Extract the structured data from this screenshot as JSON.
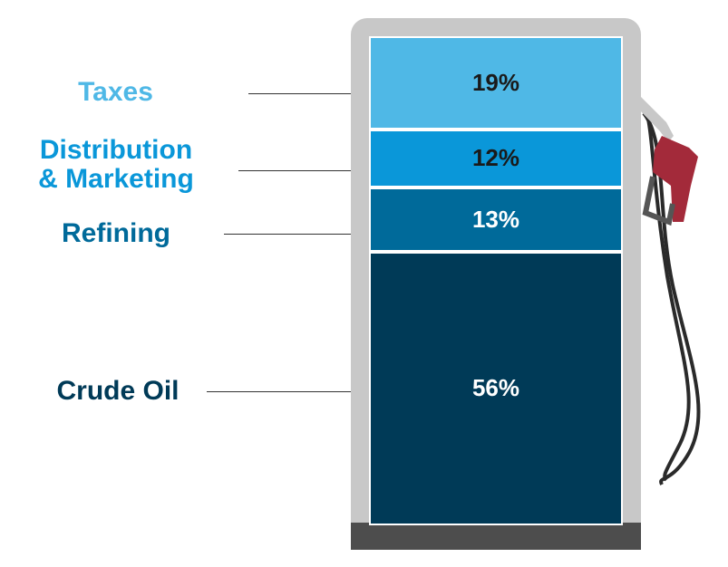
{
  "chart_data": {
    "type": "stacked-bar",
    "categories": [
      "Taxes",
      "Distribution\n& Marketing",
      "Refining",
      "Crude Oil"
    ],
    "values": [
      19,
      12,
      13,
      56
    ],
    "value_labels": [
      "19%",
      "12%",
      "13%",
      "56%"
    ],
    "colors": [
      "#4fb8e6",
      "#0a97d9",
      "#006a9a",
      "#003a57"
    ],
    "label_colors": [
      "#4fb8e6",
      "#0a97d9",
      "#006a9a",
      "#003a57"
    ],
    "value_text_colors": [
      "#1a1a1a",
      "#1a1a1a",
      "#ffffff",
      "#ffffff"
    ],
    "ylim": [
      0,
      100
    ]
  },
  "labels": {
    "taxes": "Taxes",
    "distribution_line1": "Distribution",
    "distribution_line2": "& Marketing",
    "refining": "Refining",
    "crude": "Crude Oil"
  }
}
